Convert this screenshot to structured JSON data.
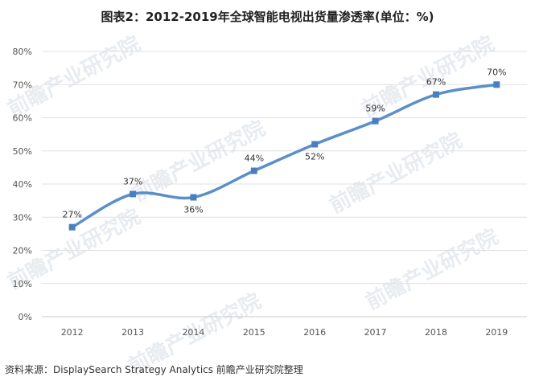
{
  "title": "图表2：2012-2019年全球智能电视出货量渗透率(单位：%)",
  "source": "资料来源：DisplaySearch Strategy Analytics 前瞻产业研究院整理",
  "watermark": "前瞻产业研究院",
  "colors": {
    "line": "#5a8fc8",
    "marker": "#4a7fbf",
    "grid": "#e0e0e0",
    "axis": "#c8c8c8"
  },
  "chart_data": {
    "type": "line",
    "title": "图表2：2012-2019年全球智能电视出货量渗透率(单位：%)",
    "xlabel": "",
    "ylabel": "",
    "categories": [
      "2012",
      "2013",
      "2014",
      "2015",
      "2016",
      "2017",
      "2018",
      "2019"
    ],
    "series": [
      {
        "values": [
          27,
          37,
          36,
          44,
          52,
          59,
          67,
          70
        ],
        "labels": [
          "27%",
          "37%",
          "36%",
          "44%",
          "52%",
          "59%",
          "67%",
          "70%"
        ]
      }
    ],
    "yticks": [
      "0%",
      "10%",
      "20%",
      "30%",
      "40%",
      "50%",
      "60%",
      "70%",
      "80%"
    ],
    "ylim": [
      0,
      80
    ],
    "grid": true,
    "smooth": true
  }
}
